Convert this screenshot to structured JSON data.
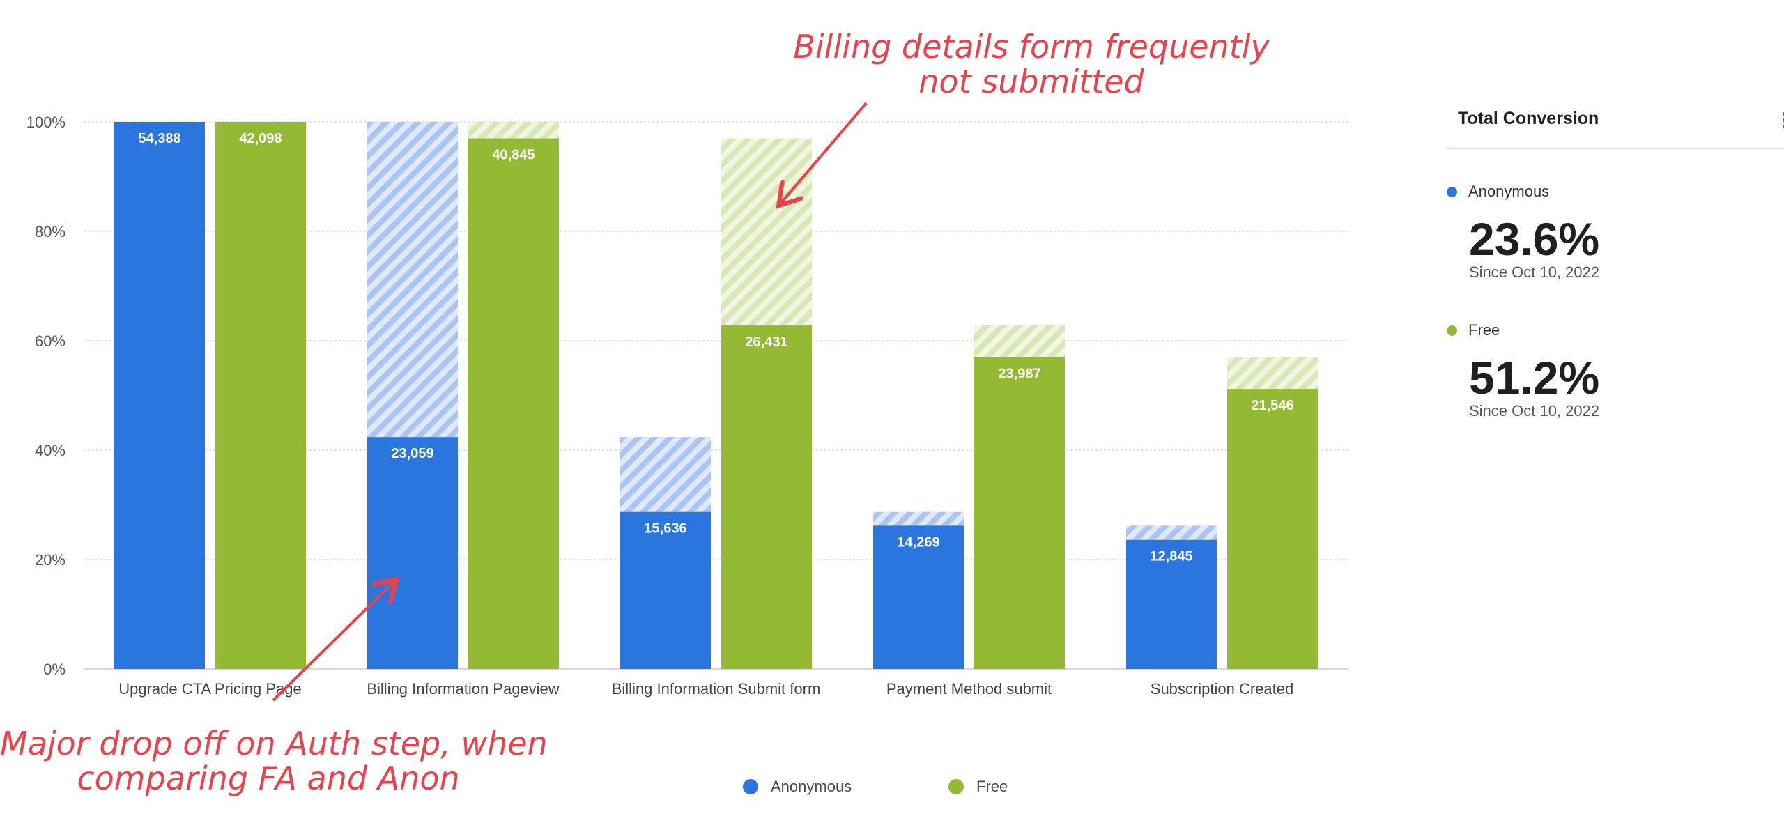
{
  "chart_data": {
    "type": "bar",
    "categories": [
      "Upgrade CTA Pricing Page",
      "Billing Information Pageview",
      "Billing Information Submit form",
      "Payment Method submit",
      "Subscription Created"
    ],
    "series": [
      {
        "name": "Anonymous",
        "color": "#2a76de",
        "percent": [
          100,
          42.4,
          28.7,
          26.2,
          23.6
        ],
        "step_previous_percent": [
          100,
          100,
          42.4,
          28.7,
          26.2
        ],
        "labels": [
          "54,388",
          "23,059",
          "15,636",
          "14,269",
          "12,845"
        ]
      },
      {
        "name": "Free",
        "color": "#94ba33",
        "percent": [
          100,
          97.0,
          62.8,
          57.0,
          51.2
        ],
        "step_previous_percent": [
          100,
          100,
          97.0,
          62.8,
          57.0
        ],
        "labels": [
          "42,098",
          "40,845",
          "26,431",
          "23,987",
          "21,546"
        ]
      }
    ],
    "y_ticks": [
      "0%",
      "20%",
      "40%",
      "60%",
      "80%",
      "100%"
    ],
    "ylim": [
      0,
      100
    ],
    "grid": true,
    "legend_position": "bottom",
    "annotations": [
      {
        "text": "Billing details form frequently\nnot submitted"
      },
      {
        "text": "Major drop off on Auth step, when\ncomparing FA and Anon"
      }
    ]
  },
  "legend": {
    "items": [
      {
        "label": "Anonymous",
        "color": "#2a76de"
      },
      {
        "label": "Free",
        "color": "#94ba33"
      }
    ]
  },
  "panel": {
    "title": "Total Conversion",
    "menu_icon": "more-vertical-icon",
    "metrics": [
      {
        "label": "Anonymous",
        "value": "23.6%",
        "since": "Since Oct 10, 2022",
        "color": "#2a76de"
      },
      {
        "label": "Free",
        "value": "51.2%",
        "since": "Since Oct 10, 2022",
        "color": "#94ba33"
      }
    ]
  },
  "annotation_billing": "Billing details form frequently\nnot submitted",
  "annotation_auth": "Major drop off on Auth step, when\ncomparing FA and Anon"
}
